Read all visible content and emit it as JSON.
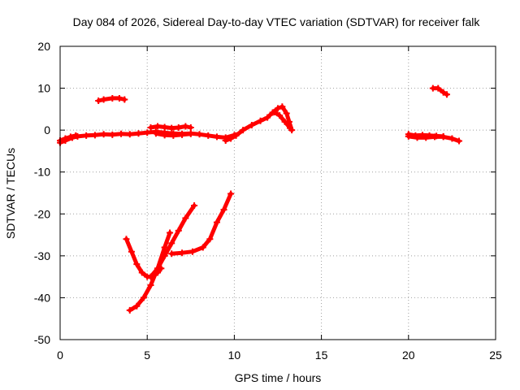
{
  "chart_data": {
    "type": "scatter",
    "title": "Day 084 of 2026, Sidereal Day-to-day VTEC variation (SDTVAR) for receiver falk",
    "xlabel": "GPS time / hours",
    "ylabel": "SDTVAR / TECUs",
    "xlim": [
      0,
      25
    ],
    "ylim": [
      -50,
      20
    ],
    "xticks": [
      0,
      5,
      10,
      15,
      20,
      25
    ],
    "yticks": [
      -50,
      -40,
      -30,
      -20,
      -10,
      0,
      10,
      20
    ],
    "xtick_labels": [
      "0",
      "5",
      "10",
      "15",
      "20",
      "25"
    ],
    "ytick_labels": [
      "-50",
      "-40",
      "-30",
      "-20",
      "-10",
      "0",
      "10",
      "20"
    ],
    "grid": true,
    "marker": "+",
    "color": "#ff0000",
    "series": [
      {
        "points": [
          [
            0.0,
            -3.0
          ],
          [
            0.3,
            -2.5
          ],
          [
            0.7,
            -1.8
          ],
          [
            1.0,
            -1.5
          ],
          [
            1.5,
            -1.3
          ],
          [
            2.0,
            -1.2
          ],
          [
            2.5,
            -1.0
          ],
          [
            3.0,
            -1.1
          ],
          [
            3.5,
            -0.9
          ],
          [
            4.0,
            -1.0
          ],
          [
            4.5,
            -0.8
          ],
          [
            5.0,
            -0.6
          ],
          [
            5.5,
            -0.4
          ],
          [
            6.0,
            -0.6
          ],
          [
            6.5,
            -0.8
          ],
          [
            7.0,
            -0.9
          ],
          [
            7.5,
            -0.8
          ],
          [
            8.0,
            -1.0
          ],
          [
            8.5,
            -1.3
          ],
          [
            9.0,
            -1.6
          ],
          [
            9.5,
            -1.8
          ],
          [
            10.0,
            -1.2
          ]
        ]
      },
      {
        "points": [
          [
            0.0,
            -2.5
          ],
          [
            0.3,
            -2.0
          ],
          [
            0.6,
            -1.6
          ],
          [
            0.9,
            -1.3
          ]
        ]
      },
      {
        "points": [
          [
            5.2,
            0.6
          ],
          [
            5.6,
            0.9
          ],
          [
            6.0,
            0.7
          ],
          [
            6.4,
            0.5
          ],
          [
            6.8,
            0.6
          ],
          [
            7.2,
            0.9
          ],
          [
            7.5,
            0.6
          ]
        ]
      },
      {
        "points": [
          [
            5.5,
            -0.8
          ],
          [
            6.0,
            -1.2
          ],
          [
            6.5,
            -1.3
          ],
          [
            7.0,
            -1.1
          ],
          [
            7.5,
            -0.9
          ]
        ]
      },
      {
        "points": [
          [
            2.2,
            7.0
          ],
          [
            2.5,
            7.3
          ],
          [
            3.0,
            7.6
          ],
          [
            3.4,
            7.6
          ],
          [
            3.7,
            7.3
          ]
        ]
      },
      {
        "points": [
          [
            9.5,
            -2.5
          ],
          [
            9.8,
            -2.0
          ],
          [
            10.1,
            -1.3
          ],
          [
            10.5,
            0.0
          ],
          [
            11.0,
            1.2
          ],
          [
            11.5,
            2.2
          ],
          [
            11.9,
            3.0
          ],
          [
            12.2,
            4.2
          ],
          [
            12.5,
            5.2
          ],
          [
            12.75,
            5.6
          ],
          [
            13.0,
            4.0
          ],
          [
            13.15,
            2.0
          ],
          [
            13.3,
            0.0
          ]
        ]
      },
      {
        "points": [
          [
            12.3,
            4.3
          ],
          [
            12.6,
            3.5
          ],
          [
            12.9,
            2.0
          ],
          [
            13.2,
            0.5
          ]
        ]
      },
      {
        "points": [
          [
            3.8,
            -26.0
          ],
          [
            4.1,
            -29.0
          ],
          [
            4.4,
            -32.0
          ],
          [
            4.7,
            -34.0
          ],
          [
            5.0,
            -35.0
          ],
          [
            5.3,
            -35.0
          ],
          [
            5.6,
            -34.0
          ],
          [
            5.8,
            -33.0
          ]
        ]
      },
      {
        "points": [
          [
            4.0,
            -43.0
          ],
          [
            4.4,
            -42.0
          ],
          [
            4.8,
            -40.0
          ],
          [
            5.2,
            -37.0
          ],
          [
            5.6,
            -33.0
          ],
          [
            6.0,
            -28.0
          ],
          [
            6.3,
            -24.5
          ]
        ]
      },
      {
        "points": [
          [
            5.2,
            -35.0
          ],
          [
            5.6,
            -33.0
          ],
          [
            6.0,
            -30.0
          ],
          [
            6.4,
            -27.0
          ],
          [
            6.8,
            -24.0
          ],
          [
            7.2,
            -21.0
          ],
          [
            7.7,
            -18.0
          ]
        ]
      },
      {
        "points": [
          [
            6.4,
            -29.5
          ],
          [
            7.0,
            -29.3
          ],
          [
            7.6,
            -29.0
          ],
          [
            8.2,
            -28.0
          ],
          [
            8.6,
            -26.0
          ],
          [
            9.0,
            -22.0
          ],
          [
            9.4,
            -19.0
          ],
          [
            9.8,
            -15.2
          ]
        ]
      },
      {
        "points": [
          [
            20.0,
            -1.5
          ],
          [
            20.5,
            -1.8
          ],
          [
            21.0,
            -1.8
          ],
          [
            21.5,
            -1.6
          ],
          [
            22.0,
            -1.6
          ],
          [
            22.5,
            -2.0
          ],
          [
            22.9,
            -2.6
          ]
        ]
      },
      {
        "points": [
          [
            20.0,
            -1.0
          ],
          [
            20.4,
            -1.3
          ],
          [
            20.8,
            -1.2
          ],
          [
            21.2,
            -1.3
          ],
          [
            21.6,
            -1.4
          ],
          [
            22.0,
            -1.5
          ]
        ]
      },
      {
        "points": [
          [
            21.4,
            10.0
          ],
          [
            21.7,
            10.0
          ],
          [
            22.0,
            9.0
          ],
          [
            22.2,
            8.5
          ]
        ]
      }
    ]
  }
}
